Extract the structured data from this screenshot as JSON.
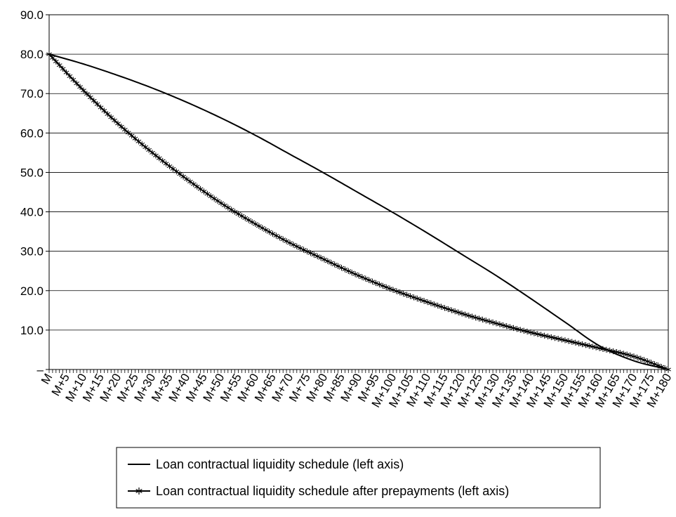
{
  "chart_data": {
    "type": "line",
    "x": {
      "start": 0,
      "end": 180,
      "tick_labels": [
        "M",
        "M+5",
        "M+10",
        "M+15",
        "M+20",
        "M+25",
        "M+30",
        "M+35",
        "M+40",
        "M+45",
        "M+50",
        "M+55",
        "M+60",
        "M+65",
        "M+70",
        "M+75",
        "M+80",
        "M+85",
        "M+90",
        "M+95",
        "M+100",
        "M+105",
        "M+110",
        "M+115",
        "M+120",
        "M+125",
        "M+130",
        "M+135",
        "M+140",
        "M+145",
        "M+150",
        "M+155",
        "M+160",
        "M+165",
        "M+170",
        "M+175",
        "M+180"
      ]
    },
    "y": {
      "min": 0,
      "max": 90,
      "tick_labels": [
        "–",
        "10.0",
        "20.0",
        "30.0",
        "40.0",
        "50.0",
        "60.0",
        "70.0",
        "80.0",
        "90.0"
      ]
    },
    "grid": true,
    "legend_position": "bottom",
    "series": [
      {
        "name": "Loan contractual liquidity schedule (left axis)",
        "marker": "none",
        "color": "#000000",
        "points": [
          [
            0,
            80
          ],
          [
            10,
            77.5
          ],
          [
            20,
            74.6
          ],
          [
            30,
            71.4
          ],
          [
            40,
            67.8
          ],
          [
            50,
            63.8
          ],
          [
            60,
            59.4
          ],
          [
            70,
            54.6
          ],
          [
            80,
            49.8
          ],
          [
            90,
            44.8
          ],
          [
            100,
            39.8
          ],
          [
            110,
            34.6
          ],
          [
            120,
            29.2
          ],
          [
            130,
            23.8
          ],
          [
            140,
            18.0
          ],
          [
            150,
            12.0
          ],
          [
            160,
            6.0
          ],
          [
            170,
            2.2
          ],
          [
            180,
            0
          ]
        ]
      },
      {
        "name": "Loan contractual liquidity schedule after prepayments (left axis)",
        "marker": "star",
        "color": "#000000",
        "points": [
          [
            0,
            80
          ],
          [
            10,
            70.8
          ],
          [
            20,
            62.4
          ],
          [
            30,
            55.0
          ],
          [
            40,
            48.3
          ],
          [
            50,
            42.2
          ],
          [
            60,
            36.9
          ],
          [
            70,
            32.1
          ],
          [
            80,
            27.9
          ],
          [
            90,
            23.8
          ],
          [
            100,
            20.2
          ],
          [
            110,
            17.1
          ],
          [
            120,
            14.2
          ],
          [
            130,
            11.7
          ],
          [
            140,
            9.4
          ],
          [
            150,
            7.4
          ],
          [
            160,
            5.4
          ],
          [
            170,
            3.3
          ],
          [
            180,
            0
          ]
        ]
      }
    ]
  }
}
